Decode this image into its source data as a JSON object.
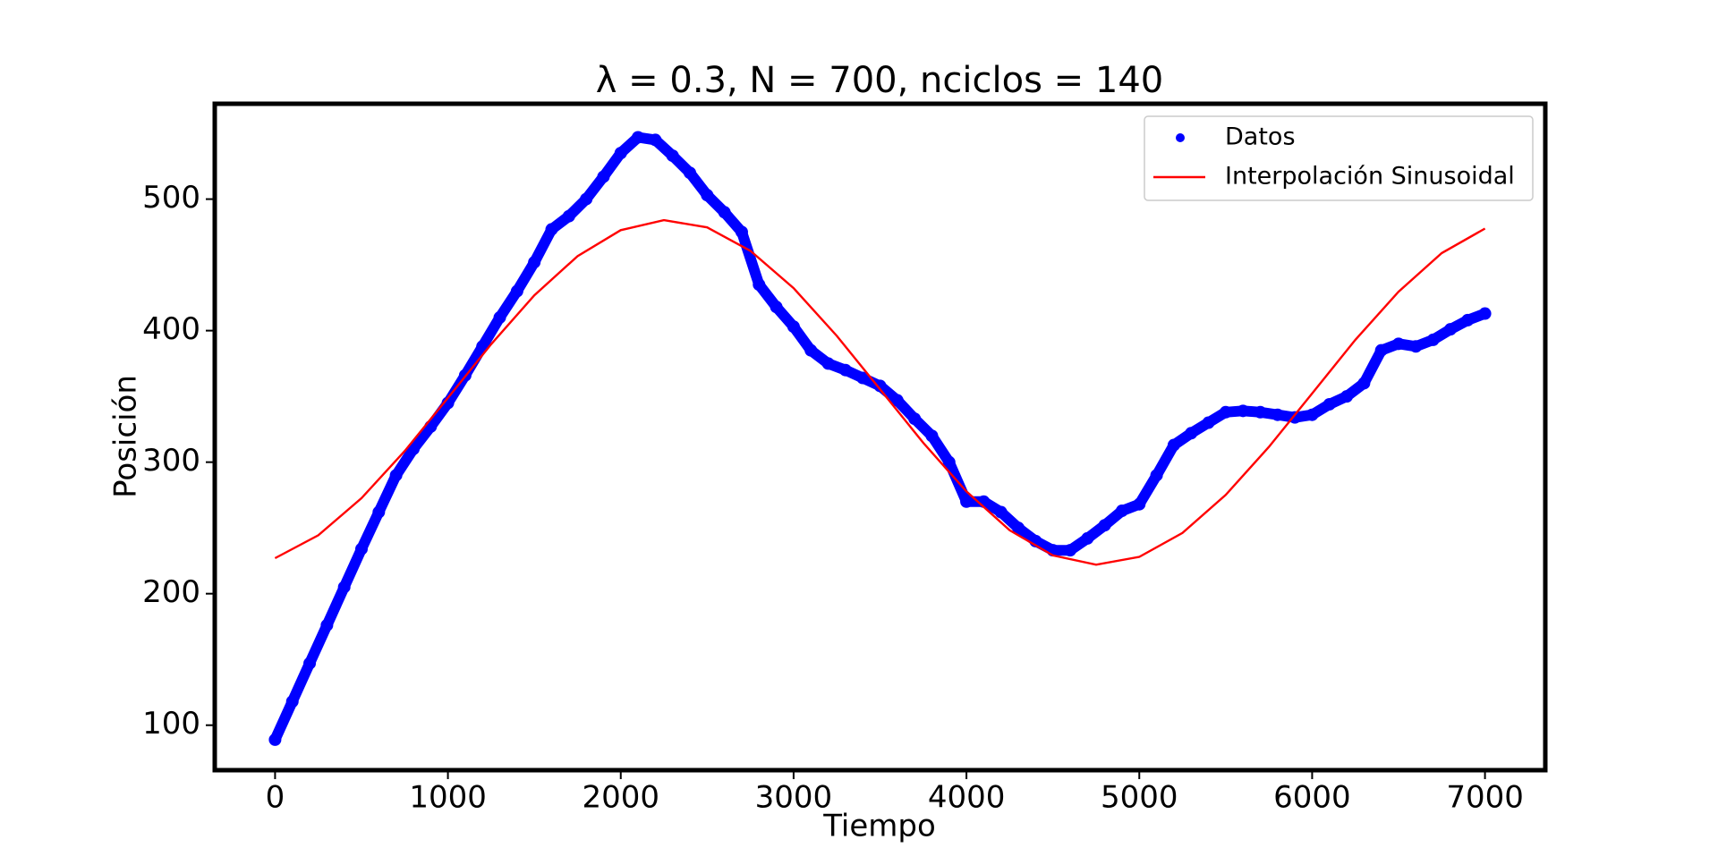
{
  "chart_data": {
    "type": "line",
    "title": "λ = 0.3, N = 700, nciclos = 140",
    "xlabel": "Tiempo",
    "ylabel": "Posición",
    "xlim": [
      -349,
      7349
    ],
    "ylim": [
      65.8,
      572.5
    ],
    "xticks": [
      0,
      1000,
      2000,
      3000,
      4000,
      5000,
      6000,
      7000
    ],
    "yticks": [
      100,
      200,
      300,
      400,
      500
    ],
    "legend": "upper right",
    "series": [
      {
        "name": "Datos",
        "color": "#0000ff",
        "style": "markers",
        "x": [
          0,
          100,
          200,
          300,
          400,
          500,
          600,
          700,
          800,
          900,
          1000,
          1100,
          1200,
          1300,
          1400,
          1500,
          1600,
          1700,
          1800,
          1900,
          2000,
          2100,
          2200,
          2300,
          2400,
          2500,
          2600,
          2700,
          2800,
          2900,
          3000,
          3100,
          3200,
          3300,
          3400,
          3500,
          3600,
          3700,
          3800,
          3900,
          4000,
          4100,
          4200,
          4300,
          4400,
          4500,
          4600,
          4700,
          4800,
          4900,
          5000,
          5100,
          5200,
          5300,
          5400,
          5500,
          5600,
          5700,
          5800,
          5900,
          6000,
          6100,
          6200,
          6300,
          6400,
          6500,
          6600,
          6700,
          6800,
          6900,
          7000
        ],
        "values": [
          89,
          118,
          147,
          176,
          205,
          234,
          262,
          290,
          310,
          327,
          345,
          366,
          388,
          410,
          430,
          452,
          477,
          487,
          500,
          517,
          535,
          547,
          545,
          533,
          520,
          503,
          490,
          475,
          435,
          418,
          403,
          385,
          375,
          370,
          364,
          358,
          347,
          333,
          320,
          300,
          270,
          270,
          262,
          250,
          240,
          233,
          233,
          242,
          252,
          263,
          268,
          290,
          313,
          322,
          330,
          338,
          339,
          338,
          336,
          334,
          336,
          344,
          350,
          360,
          385,
          390,
          388,
          393,
          401,
          408,
          413
        ]
      },
      {
        "name": "Interpolación Sinusoidal",
        "color": "#ff0000",
        "style": "line",
        "x": [
          0,
          250,
          500,
          750,
          1000,
          1250,
          1500,
          1750,
          2000,
          2250,
          2500,
          2750,
          3000,
          3250,
          3500,
          3750,
          4000,
          4250,
          4500,
          4750,
          5000,
          5250,
          5500,
          5750,
          6000,
          6250,
          6500,
          6750,
          7000
        ],
        "values": [
          227.0,
          244.4,
          272.6,
          308.5,
          348.9,
          389.7,
          426.9,
          456.7,
          476.4,
          484.0,
          478.5,
          460.7,
          432.3,
          396.0,
          355.5,
          314.7,
          277.7,
          248.2,
          229.1,
          222.0,
          228.0,
          246.2,
          275.1,
          311.6,
          352.2,
          393.0,
          429.6,
          459.0,
          477.6
        ]
      }
    ]
  }
}
